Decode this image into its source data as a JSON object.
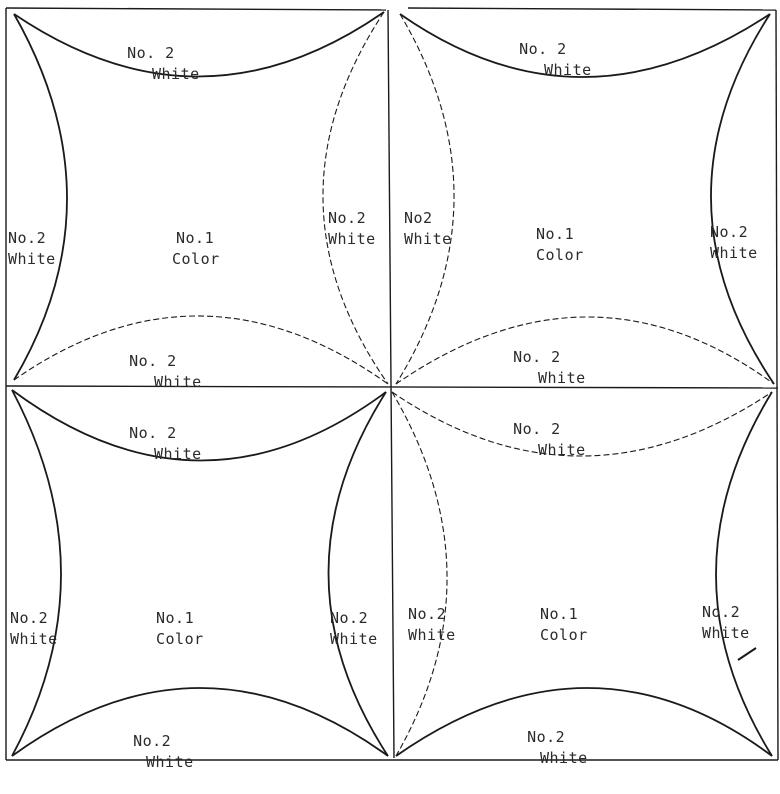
{
  "blocks": [
    {
      "id": "top-left",
      "center": {
        "line1": "No.1",
        "line2": "Color"
      },
      "top": {
        "line1": "No. 2",
        "line2": "White"
      },
      "left": {
        "line1": "No.2",
        "line2": "White"
      },
      "right": {
        "line1": "No.2",
        "line2": "White"
      },
      "bottom": {
        "line1": "No. 2",
        "line2": "White"
      }
    },
    {
      "id": "top-right",
      "center": {
        "line1": "No.1",
        "line2": "Color"
      },
      "top": {
        "line1": "No. 2",
        "line2": "White"
      },
      "left": {
        "line1": "No2",
        "line2": "White"
      },
      "right": {
        "line1": "No.2",
        "line2": "White"
      },
      "bottom": {
        "line1": "No. 2",
        "line2": "White"
      }
    },
    {
      "id": "bottom-left",
      "center": {
        "line1": "No.1",
        "line2": "Color"
      },
      "top": {
        "line1": "No. 2",
        "line2": "White"
      },
      "left": {
        "line1": "No.2",
        "line2": "White"
      },
      "right": {
        "line1": "No.2",
        "line2": "White"
      },
      "bottom": {
        "line1": "No.2",
        "line2": "White"
      }
    },
    {
      "id": "bottom-right",
      "center": {
        "line1": "No.1",
        "line2": "Color"
      },
      "top": {
        "line1": "No. 2",
        "line2": "White"
      },
      "left": {
        "line1": "No.2",
        "line2": "White"
      },
      "right": {
        "line1": "No.2",
        "line2": "White"
      },
      "bottom": {
        "line1": "No.2",
        "line2": "White"
      }
    }
  ],
  "colors": {
    "ink": "#1a1a1a",
    "faint_ink": "#555555",
    "paper": "#ffffff"
  }
}
